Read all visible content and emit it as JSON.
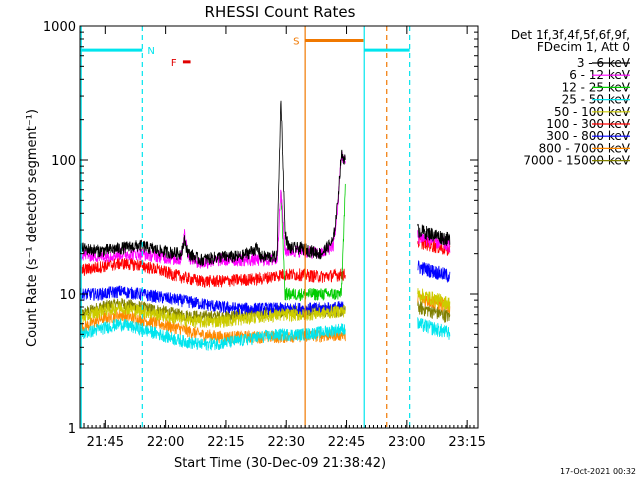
{
  "chart_data": {
    "type": "line",
    "title": "RHESSI Count Rates",
    "ylabel": "Count Rate (s⁻¹ detector segment⁻¹)",
    "xlabel": "Start Time (30-Dec-09 21:38:42)",
    "footer_date": "17-Oct-2021 00:32",
    "y_scale": "log",
    "ylim": [
      1,
      1000
    ],
    "y_ticks": [
      1,
      10,
      100,
      1000
    ],
    "x_range_minutes": [
      0,
      99
    ],
    "x_ticks": [
      "21:45",
      "22:00",
      "22:15",
      "22:30",
      "22:45",
      "23:00",
      "23:15"
    ],
    "x_tick_minutes": [
      6.3,
      21.3,
      36.3,
      51.3,
      66.3,
      81.3,
      96.3
    ],
    "legend": {
      "header_line1": "Det 1f,3f,4f,5f,6f,9f,",
      "header_line2": "FDecim 1, Att 0",
      "placement": "right, outside plot"
    },
    "annotations": [
      {
        "text": "N",
        "color": "#00e5ee"
      },
      {
        "text": "F",
        "color": "#e00000"
      },
      {
        "text": "S",
        "color": "#f07800"
      }
    ],
    "intervals": [
      {
        "label": "N",
        "color": "#00e5ee",
        "t0": 0.0,
        "t1": 15.5,
        "level": 660
      },
      {
        "label": "S",
        "color": "#f07800",
        "t0": 56.0,
        "t1": 70.5,
        "level": 780
      },
      {
        "label": "",
        "color": "#00e5ee",
        "t0": 70.7,
        "t1": 82.0,
        "level": 660
      },
      {
        "label": "F",
        "color": "#e00000",
        "t0": 25.6,
        "t1": 27.5,
        "level": 540
      }
    ],
    "vlines": [
      {
        "t": 0.3,
        "color": "#00e5ee",
        "style": "solid"
      },
      {
        "t": 15.5,
        "color": "#00e5ee",
        "style": "dashed"
      },
      {
        "t": 56.0,
        "color": "#f07800",
        "style": "solid"
      },
      {
        "t": 70.7,
        "color": "#00e5ee",
        "style": "solid"
      },
      {
        "t": 76.3,
        "color": "#f07800",
        "style": "dashed"
      },
      {
        "t": 82.0,
        "color": "#00e5ee",
        "style": "dashed"
      }
    ],
    "series": [
      {
        "name": "3 - 6 keV",
        "color": "#000000",
        "points": [
          [
            0,
            22
          ],
          [
            5,
            21
          ],
          [
            10,
            22
          ],
          [
            15,
            23
          ],
          [
            20,
            21
          ],
          [
            25,
            20
          ],
          [
            26,
            25
          ],
          [
            27,
            20
          ],
          [
            30,
            18
          ],
          [
            35,
            19
          ],
          [
            40,
            19
          ],
          [
            44,
            22
          ],
          [
            45,
            19
          ],
          [
            49,
            19
          ],
          [
            50,
            300
          ],
          [
            51,
            28
          ],
          [
            52,
            22
          ],
          [
            55,
            22
          ],
          [
            60,
            20
          ],
          [
            63,
            25
          ],
          [
            64,
            45
          ],
          [
            65,
            110
          ],
          [
            66,
            100
          ]
        ]
      },
      {
        "name": "6 - 12 keV",
        "color": "#ff00ff",
        "points": [
          [
            0,
            20
          ],
          [
            5,
            19
          ],
          [
            10,
            20
          ],
          [
            15,
            20
          ],
          [
            20,
            19
          ],
          [
            25,
            18
          ],
          [
            26,
            28
          ],
          [
            27,
            19
          ],
          [
            30,
            17
          ],
          [
            35,
            18
          ],
          [
            40,
            18
          ],
          [
            45,
            18
          ],
          [
            49,
            18
          ],
          [
            50,
            60
          ],
          [
            51,
            21
          ],
          [
            55,
            21
          ],
          [
            60,
            20
          ],
          [
            63,
            23
          ],
          [
            64,
            40
          ],
          [
            65,
            110
          ],
          [
            66,
            95
          ]
        ]
      },
      {
        "name": "12 - 25 keV",
        "color": "#00cc00",
        "points": [
          [
            50,
            60
          ],
          [
            51,
            10
          ],
          [
            65,
            10
          ],
          [
            66,
            60
          ]
        ]
      },
      {
        "name": "25 - 50 keV",
        "color": "#00e5ee",
        "points": [
          [
            0,
            5
          ],
          [
            5,
            5.5
          ],
          [
            10,
            6
          ],
          [
            15,
            5.5
          ],
          [
            20,
            5
          ],
          [
            25,
            4.5
          ],
          [
            30,
            4.2
          ],
          [
            35,
            4.3
          ],
          [
            40,
            4.5
          ],
          [
            45,
            4.8
          ],
          [
            50,
            5
          ],
          [
            55,
            5
          ],
          [
            60,
            5.2
          ],
          [
            65,
            5.5
          ],
          [
            66,
            5.5
          ]
        ]
      },
      {
        "name": "50 - 100 keV",
        "color": "#cccc00",
        "points": [
          [
            0,
            6.5
          ],
          [
            5,
            7.5
          ],
          [
            10,
            8
          ],
          [
            15,
            7.5
          ],
          [
            20,
            7
          ],
          [
            25,
            6.5
          ],
          [
            30,
            6.2
          ],
          [
            35,
            6.3
          ],
          [
            40,
            6.5
          ],
          [
            45,
            6.8
          ],
          [
            50,
            7
          ],
          [
            55,
            7
          ],
          [
            60,
            7.2
          ],
          [
            65,
            7.5
          ],
          [
            66,
            7.5
          ]
        ]
      },
      {
        "name": "100 - 300 keV",
        "color": "#ff0000",
        "points": [
          [
            0,
            15
          ],
          [
            5,
            16
          ],
          [
            10,
            17
          ],
          [
            15,
            16.5
          ],
          [
            20,
            15
          ],
          [
            25,
            13.5
          ],
          [
            30,
            12.5
          ],
          [
            35,
            12.5
          ],
          [
            40,
            12.8
          ],
          [
            45,
            13
          ],
          [
            50,
            14
          ],
          [
            55,
            14
          ],
          [
            60,
            13.5
          ],
          [
            65,
            14
          ],
          [
            66,
            14
          ]
        ]
      },
      {
        "name": "300 - 800 keV",
        "color": "#0000ff",
        "points": [
          [
            0,
            10
          ],
          [
            5,
            10
          ],
          [
            10,
            10.5
          ],
          [
            15,
            10
          ],
          [
            20,
            9.5
          ],
          [
            25,
            9
          ],
          [
            30,
            8.5
          ],
          [
            35,
            8
          ],
          [
            40,
            7.8
          ],
          [
            45,
            7.8
          ],
          [
            50,
            7.8
          ],
          [
            55,
            7.8
          ],
          [
            60,
            7.8
          ],
          [
            65,
            8
          ],
          [
            66,
            8
          ]
        ]
      },
      {
        "name": "800 - 7000 keV",
        "color": "#ff8800",
        "points": [
          [
            0,
            5.5
          ],
          [
            5,
            6.5
          ],
          [
            10,
            7
          ],
          [
            15,
            6.5
          ],
          [
            20,
            6
          ],
          [
            25,
            5.5
          ],
          [
            30,
            5
          ],
          [
            35,
            4.8
          ],
          [
            40,
            4.8
          ],
          [
            45,
            4.8
          ],
          [
            50,
            4.8
          ],
          [
            55,
            4.9
          ],
          [
            60,
            4.9
          ],
          [
            65,
            5
          ],
          [
            66,
            5
          ]
        ]
      },
      {
        "name": "7000 - 15000 keV",
        "color": "#808000",
        "points": [
          [
            0,
            7
          ],
          [
            5,
            8
          ],
          [
            10,
            8.5
          ],
          [
            15,
            8
          ],
          [
            20,
            7.5
          ],
          [
            25,
            7
          ],
          [
            30,
            6.8
          ],
          [
            35,
            6.8
          ],
          [
            40,
            7
          ],
          [
            45,
            7.2
          ],
          [
            50,
            7.5
          ],
          [
            55,
            7.5
          ],
          [
            60,
            7.5
          ],
          [
            65,
            7.5
          ],
          [
            66,
            7.5
          ]
        ]
      }
    ],
    "late_segment": {
      "t0": 84.0,
      "t1": 92.0,
      "levels": {
        "3 - 6 keV": 30,
        "6 - 12 keV": 27,
        "100 - 300 keV": 25,
        "300 - 800 keV": 16,
        "50 - 100 keV": 10,
        "800 - 7000 keV": 9.5,
        "7000 - 15000 keV": 8,
        "25 - 50 keV": 6
      }
    }
  }
}
